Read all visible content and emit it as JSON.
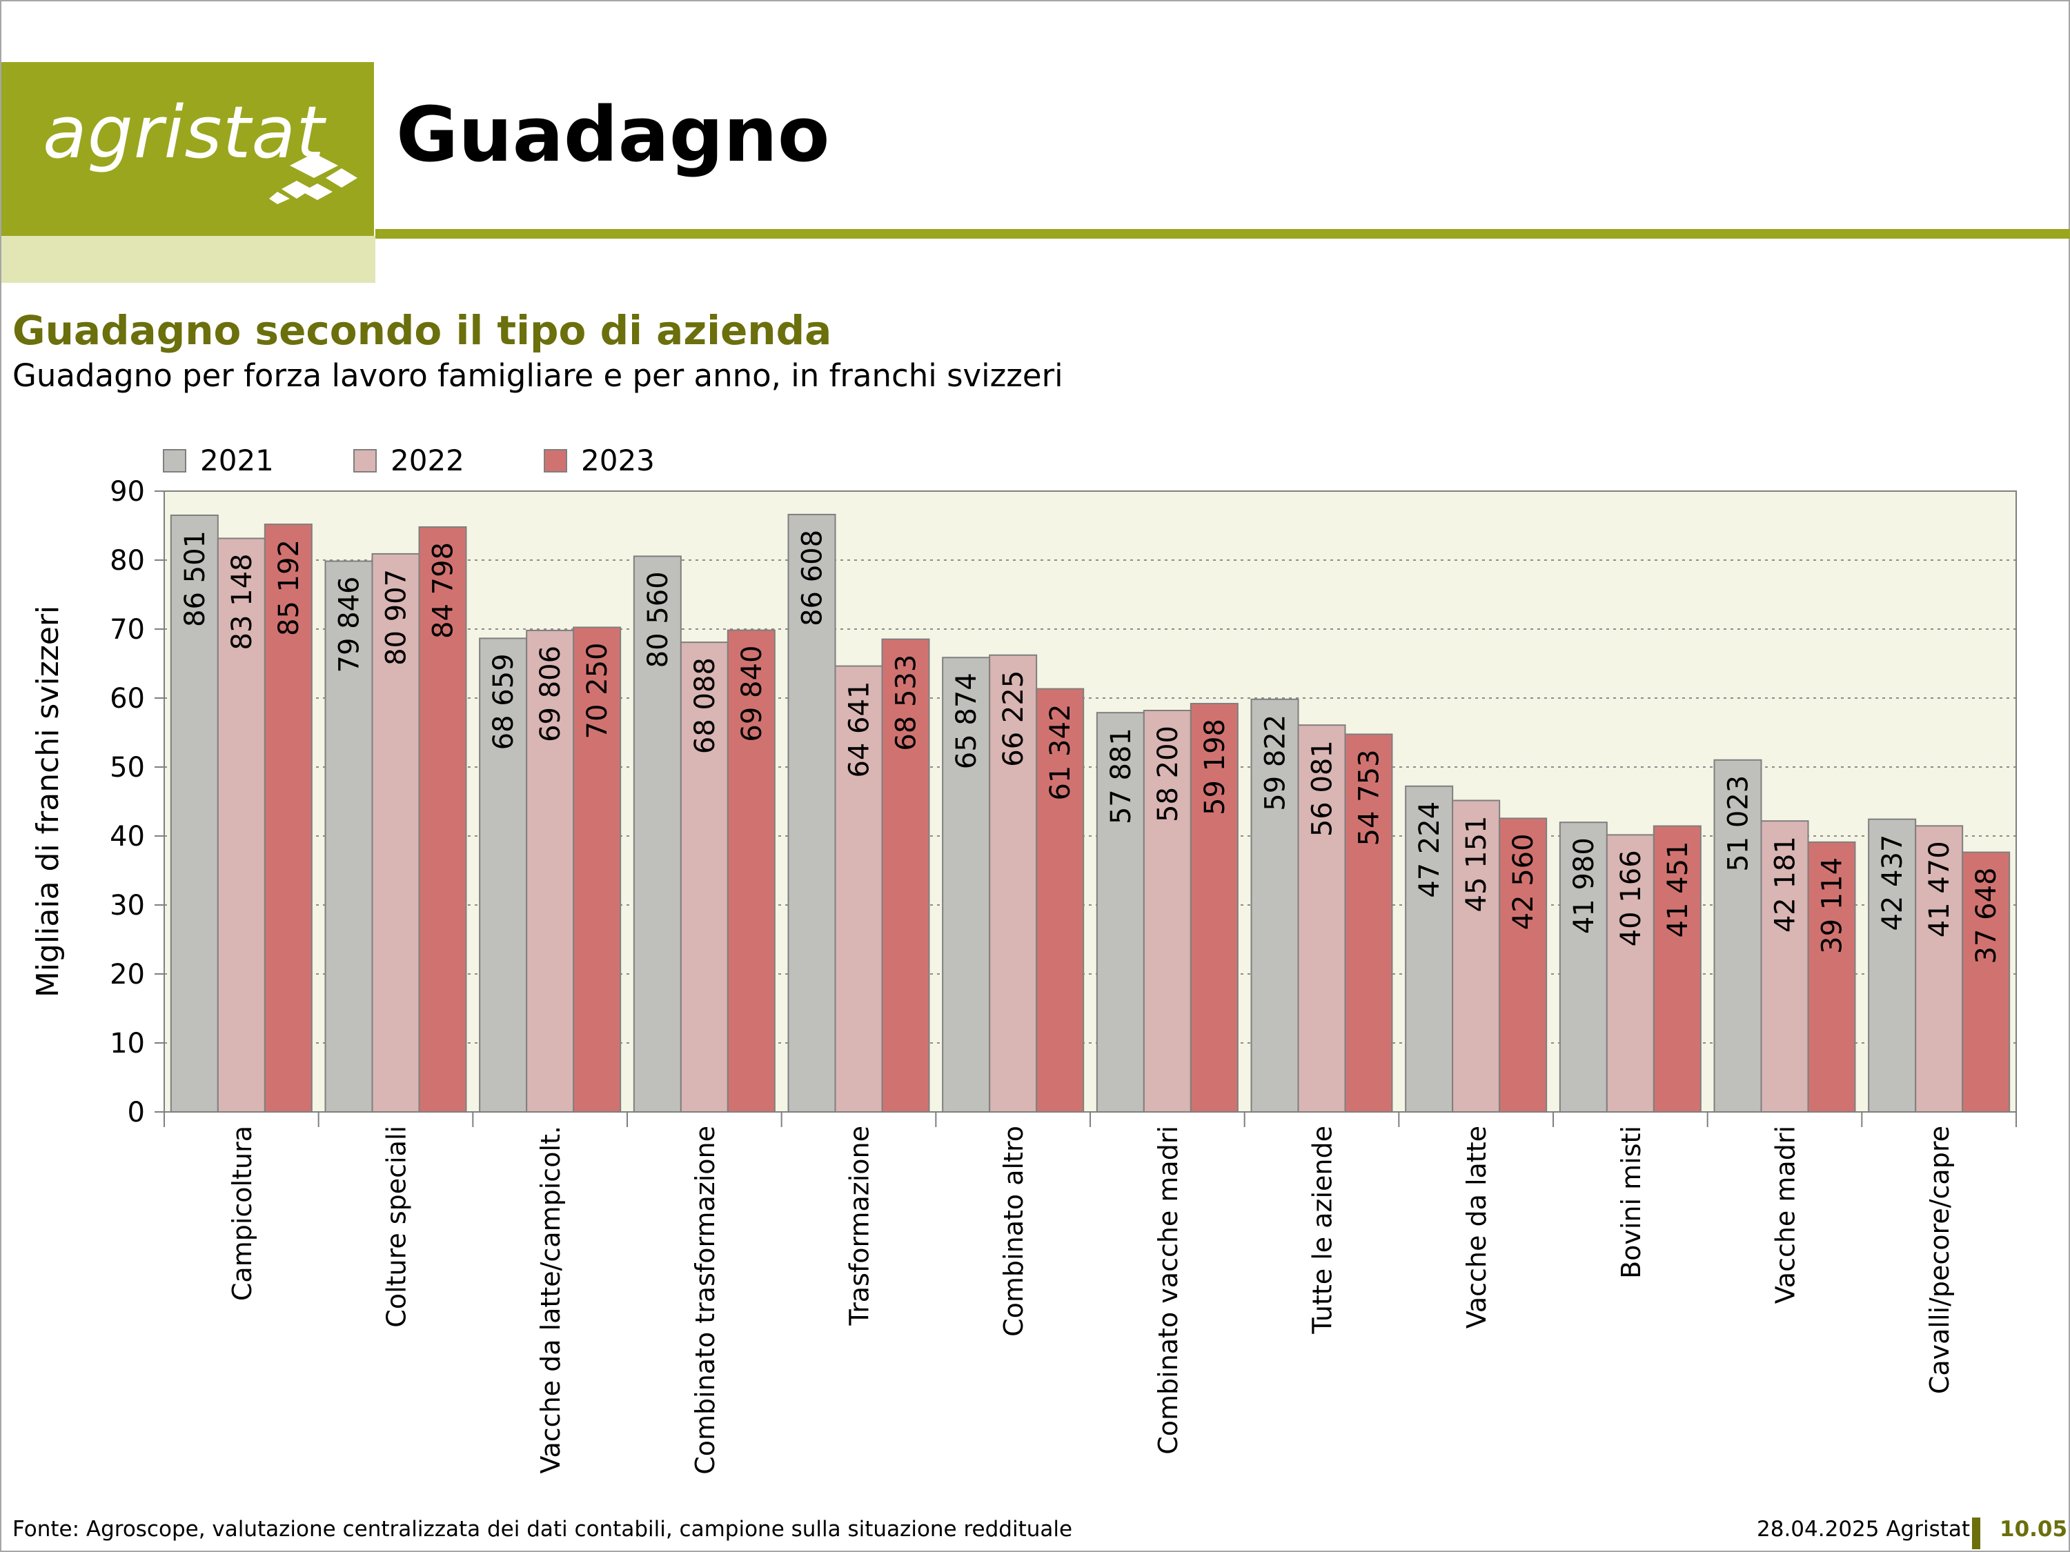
{
  "header": {
    "logo_text": "agristat",
    "title": "Guadagno"
  },
  "chart_data": {
    "type": "bar",
    "title": "Guadagno secondo il tipo di azienda",
    "subtitle": "Guadagno per forza lavoro famigliare e per anno, in franchi svizzeri",
    "xlabel": "",
    "ylabel": "Migliaia di franchi svizzeri",
    "ylim": [
      0,
      90
    ],
    "yticks": [
      "0",
      "10",
      "20",
      "30",
      "40",
      "50",
      "60",
      "70",
      "80",
      "90"
    ],
    "grid": "horizontal dotted",
    "legend_position": "top-left",
    "categories": [
      "Campicoltura",
      "Colture speciali",
      "Vacche da latte/campicolt.",
      "Combinato trasformazione",
      "Trasformazione",
      "Combinato altro",
      "Combinato vacche madri",
      "Tutte le aziende",
      "Vacche da latte",
      "Bovini misti",
      "Vacche madri",
      "Cavalli/pecore/capre"
    ],
    "series": [
      {
        "name": "2021",
        "color": "#bfbfbb",
        "values": [
          86501,
          79846,
          68659,
          80560,
          86608,
          65874,
          57881,
          59822,
          47224,
          41980,
          51023,
          42437
        ],
        "labels": [
          "86 501",
          "79 846",
          "68 659",
          "80 560",
          "86 608",
          "65 874",
          "57 881",
          "59 822",
          "47 224",
          "41 980",
          "51 023",
          "42 437"
        ]
      },
      {
        "name": "2022",
        "color": "#d9b5b3",
        "values": [
          83148,
          80907,
          69806,
          68088,
          64641,
          66225,
          58200,
          56081,
          45151,
          40166,
          42181,
          41470
        ],
        "labels": [
          "83 148",
          "80 907",
          "69 806",
          "68 088",
          "64 641",
          "66 225",
          "58 200",
          "56 081",
          "45 151",
          "40 166",
          "42 181",
          "41 470"
        ]
      },
      {
        "name": "2023",
        "color": "#d07370",
        "values": [
          85192,
          84798,
          70250,
          69840,
          68533,
          61342,
          59198,
          54753,
          42560,
          41451,
          39114,
          37648
        ],
        "labels": [
          "85 192",
          "84 798",
          "70 250",
          "69 840",
          "68 533",
          "61 342",
          "59 198",
          "54 753",
          "42 560",
          "41 451",
          "39 114",
          "37 648"
        ]
      }
    ],
    "colors": {
      "plot_background": "#f4f5e4",
      "accent": "#9aa61e"
    }
  },
  "footer": {
    "source": "Fonte: Agroscope, valutazione centralizzata dei dati contabili, campione sulla situazione reddituale",
    "date": "28.04.2025 Agristat",
    "page": "10.05"
  }
}
